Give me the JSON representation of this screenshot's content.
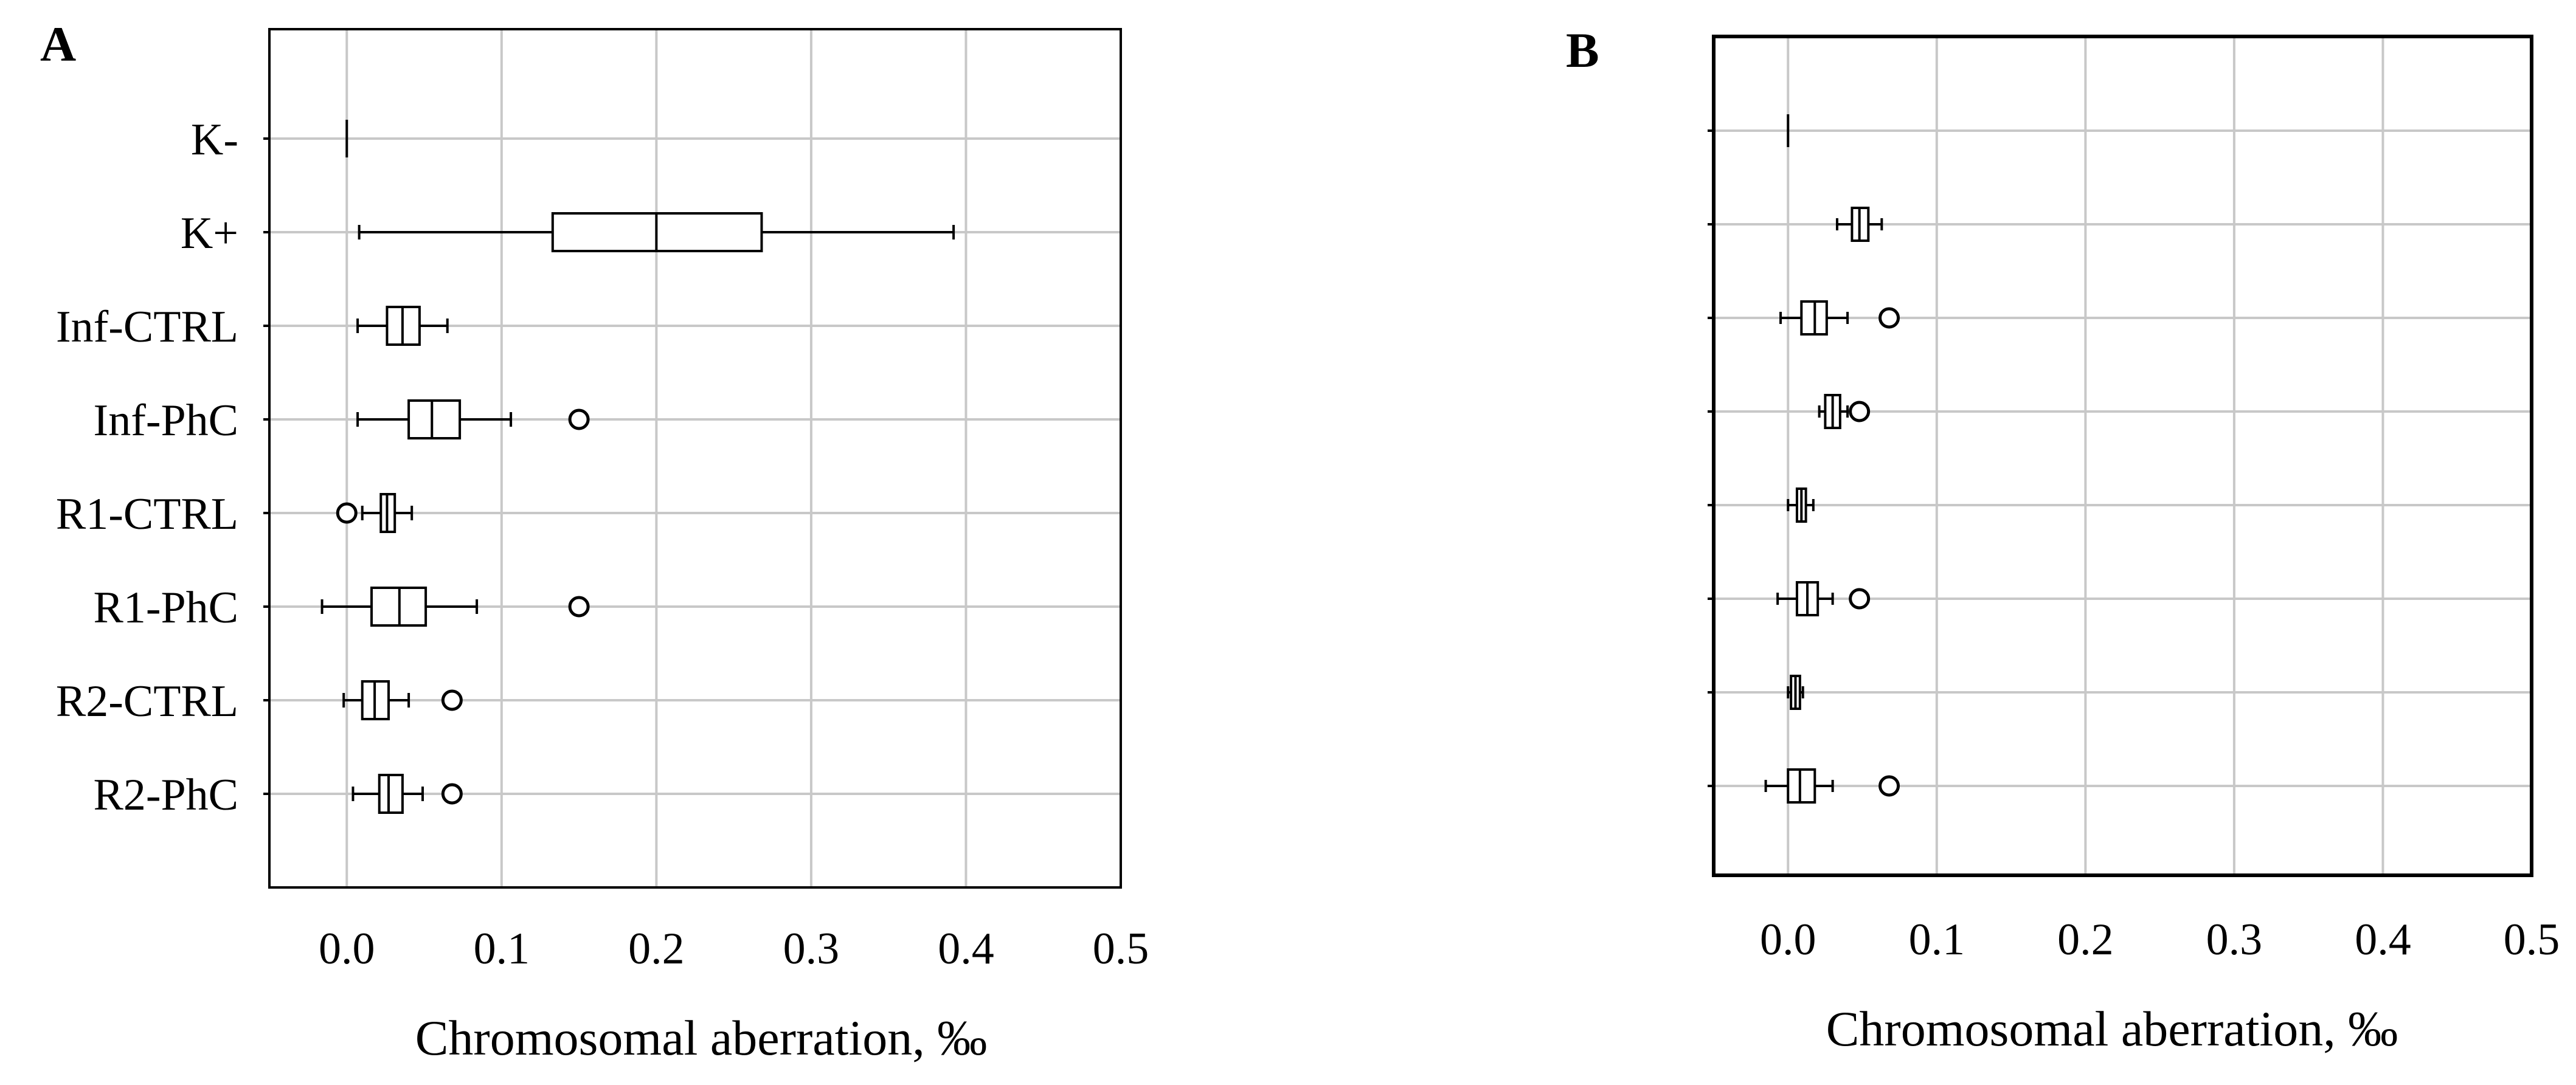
{
  "chart_data": [
    {
      "panel": "A",
      "type": "boxplot",
      "xlabel": "Chromosomal aberration, ‰",
      "xlim": [
        -0.05,
        0.5
      ],
      "xticks": [
        "0.0",
        "0.1",
        "0.2",
        "0.3",
        "0.4",
        "0.5"
      ],
      "grid": true,
      "categories": [
        "K-",
        "K+",
        "Inf-CTRL",
        "Inf-PhC",
        "R1-CTRL",
        "R1-PhC",
        "R2-CTRL",
        "R2-PhC"
      ],
      "boxes": [
        {
          "category": "K-",
          "whisker_low": 0.0,
          "q1": 0.0,
          "median": 0.0,
          "q3": 0.0,
          "whisker_high": 0.0,
          "outliers": []
        },
        {
          "category": "K+",
          "whisker_low": 0.008,
          "q1": 0.133,
          "median": 0.2,
          "q3": 0.268,
          "whisker_high": 0.392,
          "outliers": []
        },
        {
          "category": "Inf-CTRL",
          "whisker_low": 0.007,
          "q1": 0.026,
          "median": 0.036,
          "q3": 0.047,
          "whisker_high": 0.065,
          "outliers": []
        },
        {
          "category": "Inf-PhC",
          "whisker_low": 0.007,
          "q1": 0.04,
          "median": 0.055,
          "q3": 0.073,
          "whisker_high": 0.106,
          "outliers": [
            0.15
          ]
        },
        {
          "category": "R1-CTRL",
          "whisker_low": 0.01,
          "q1": 0.022,
          "median": 0.026,
          "q3": 0.031,
          "whisker_high": 0.042,
          "outliers": [
            0.0
          ]
        },
        {
          "category": "R1-PhC",
          "whisker_low": -0.016,
          "q1": 0.016,
          "median": 0.034,
          "q3": 0.051,
          "whisker_high": 0.084,
          "outliers": [
            0.15
          ]
        },
        {
          "category": "R2-CTRL",
          "whisker_low": -0.002,
          "q1": 0.01,
          "median": 0.018,
          "q3": 0.027,
          "whisker_high": 0.04,
          "outliers": [
            0.068
          ]
        },
        {
          "category": "R2-PhC",
          "whisker_low": 0.004,
          "q1": 0.021,
          "median": 0.027,
          "q3": 0.036,
          "whisker_high": 0.049,
          "outliers": [
            0.068
          ]
        }
      ]
    },
    {
      "panel": "B",
      "type": "boxplot",
      "xlabel": "Chromosomal aberration, ‰",
      "xlim": [
        -0.05,
        0.5
      ],
      "xticks": [
        "0.0",
        "0.1",
        "0.2",
        "0.3",
        "0.4",
        "0.5"
      ],
      "grid": true,
      "boxes": [
        {
          "whisker_low": 0.0,
          "q1": 0.0,
          "median": 0.0,
          "q3": 0.0,
          "whisker_high": 0.0,
          "outliers": []
        },
        {
          "whisker_low": 0.033,
          "q1": 0.043,
          "median": 0.048,
          "q3": 0.054,
          "whisker_high": 0.063,
          "outliers": []
        },
        {
          "whisker_low": -0.005,
          "q1": 0.009,
          "median": 0.018,
          "q3": 0.026,
          "whisker_high": 0.04,
          "outliers": [
            0.068
          ]
        },
        {
          "whisker_low": 0.021,
          "q1": 0.025,
          "median": 0.03,
          "q3": 0.035,
          "whisker_high": 0.04,
          "outliers": [
            0.048
          ]
        },
        {
          "whisker_low": 0.0,
          "q1": 0.006,
          "median": 0.009,
          "q3": 0.012,
          "whisker_high": 0.017,
          "outliers": []
        },
        {
          "whisker_low": -0.007,
          "q1": 0.006,
          "median": 0.013,
          "q3": 0.02,
          "whisker_high": 0.03,
          "outliers": [
            0.048
          ]
        },
        {
          "whisker_low": 0.0,
          "q1": 0.002,
          "median": 0.005,
          "q3": 0.008,
          "whisker_high": 0.01,
          "outliers": []
        },
        {
          "whisker_low": -0.015,
          "q1": 0.0,
          "median": 0.008,
          "q3": 0.018,
          "whisker_high": 0.03,
          "outliers": [
            0.068
          ]
        }
      ]
    }
  ]
}
